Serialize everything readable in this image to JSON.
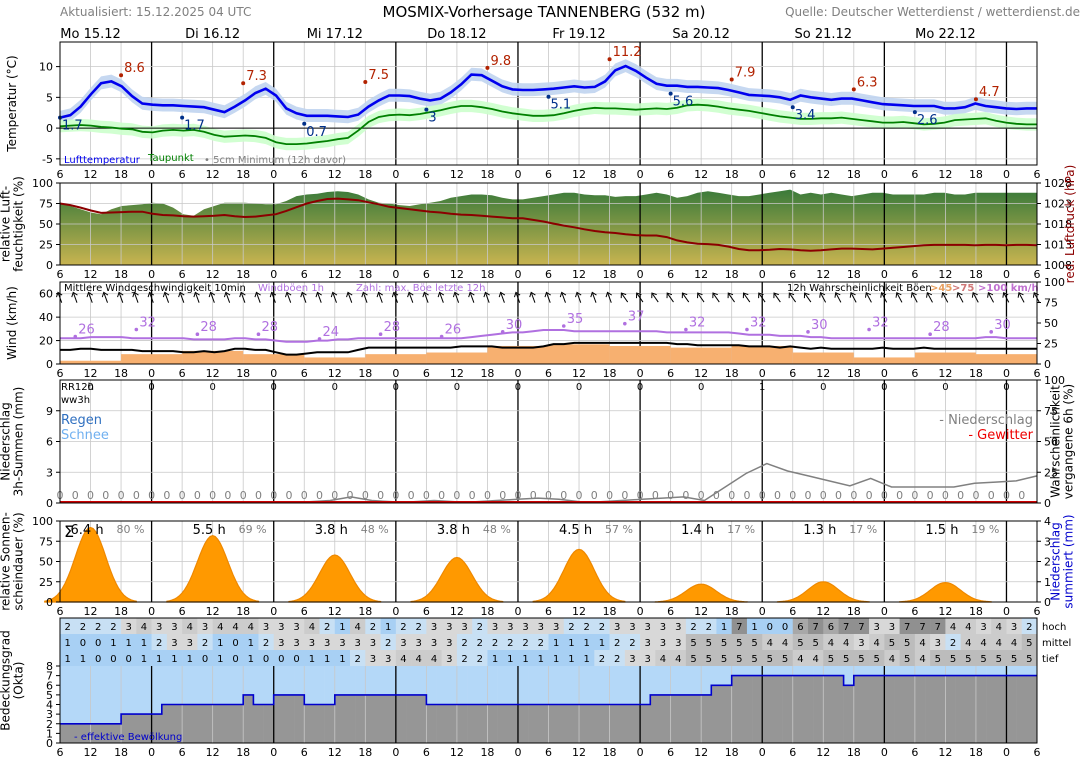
{
  "header": {
    "updated": "Aktualisiert: 15.12.2025 04 UTC",
    "title": "MOSMIX-Vorhersage TANNENBERG (532 m)",
    "source": "Quelle: Deutscher Wetterdienst / wetterdienst.de"
  },
  "days": [
    "Mo 15.12",
    "Di 16.12",
    "Mi 17.12",
    "Do 18.12",
    "Fr 19.12",
    "Sa 20.12",
    "So 21.12",
    "Mo 22.12"
  ],
  "hour_ticks": [
    "6",
    "12",
    "18",
    "0"
  ],
  "colors": {
    "temp": "#0000ee",
    "temp_band": "#c0d4f0",
    "dew": "#008000",
    "dew_band": "#ccffcc",
    "max_label": "#b22200",
    "min_label": "#00308a",
    "humidity_top": "#3a7a3a",
    "humidity_bottom": "#c8b450",
    "pressure": "#8b0000",
    "wind": "#000000",
    "gust": "#b070e0",
    "wind_prob": "#f7b070",
    "sun": "#ff9900",
    "precip_prob": "#808080",
    "cloud_eff": "#0000cc"
  },
  "chart_data": [
    {
      "type": "line",
      "name": "temperature",
      "ylabel": "Temperatur (°C)",
      "ylim": [
        -6,
        14
      ],
      "yticks": [
        -5,
        0,
        5,
        10
      ],
      "legend": [
        "Lufttemperatur",
        "Taupunkt",
        "5cm Minimum (12h davor)"
      ],
      "series": [
        {
          "name": "Lufttemperatur",
          "values": [
            1.7,
            2.1,
            3.5,
            5.5,
            7.3,
            7.6,
            6.8,
            5.2,
            4.0,
            3.8,
            3.7,
            3.7,
            3.6,
            3.5,
            3.4,
            3.0,
            2.6,
            3.5,
            4.5,
            5.7,
            6.4,
            5.3,
            3.2,
            2.4,
            2.0,
            2.0,
            2.0,
            1.9,
            1.8,
            2.2,
            3.5,
            4.5,
            5.3,
            5.3,
            5.2,
            4.8,
            4.5,
            4.8,
            5.8,
            7.1,
            8.7,
            8.6,
            7.7,
            6.8,
            6.3,
            6.2,
            6.2,
            6.3,
            6.4,
            6.6,
            6.8,
            6.6,
            6.7,
            7.6,
            9.4,
            10.1,
            9.3,
            8.2,
            7.2,
            6.9,
            6.9,
            6.7,
            6.7,
            6.6,
            6.5,
            6.2,
            5.8,
            5.4,
            5.3,
            5.2,
            5.0,
            4.6,
            5.3,
            5.0,
            4.8,
            4.6,
            4.8,
            4.8,
            4.5,
            4.2,
            3.9,
            3.8,
            3.7,
            3.6,
            3.6,
            3.6,
            3.2,
            3.2,
            3.4,
            4.0,
            3.6,
            3.4,
            3.2,
            3.1,
            3.2,
            3.2
          ]
        },
        {
          "name": "Taupunkt",
          "values": [
            0.3,
            0.4,
            0.5,
            0.4,
            0.2,
            0.1,
            -0.1,
            -0.2,
            -0.6,
            -0.7,
            -0.4,
            -0.3,
            -0.4,
            -0.3,
            -0.6,
            -1.1,
            -1.4,
            -1.3,
            -1.2,
            -1.3,
            -1.6,
            -2.3,
            -2.6,
            -2.6,
            -2.5,
            -2.3,
            -2.1,
            -1.8,
            -1.6,
            -0.4,
            1.0,
            1.8,
            2.1,
            2.2,
            2.1,
            2.3,
            2.6,
            2.9,
            3.3,
            3.6,
            3.6,
            3.4,
            3.1,
            2.7,
            2.4,
            2.2,
            2.0,
            2.0,
            2.1,
            2.4,
            2.8,
            3.1,
            3.3,
            3.2,
            3.2,
            3.1,
            3.0,
            3.1,
            3.2,
            3.1,
            3.3,
            3.7,
            3.8,
            3.7,
            3.5,
            3.2,
            3.0,
            2.8,
            2.5,
            2.2,
            1.9,
            1.7,
            1.5,
            1.5,
            1.6,
            1.6,
            1.7,
            1.5,
            1.3,
            1.1,
            0.9,
            0.9,
            1.0,
            0.8,
            0.6,
            0.7,
            0.9,
            1.3,
            1.4,
            1.5,
            1.6,
            1.2,
            0.9,
            0.7,
            0.6,
            0.6
          ]
        }
      ],
      "max_labels": [
        8.6,
        7.3,
        7.5,
        9.8,
        11.2,
        7.9,
        6.3,
        4.7
      ],
      "min_labels": [
        1.7,
        1.7,
        0.7,
        3.0,
        5.1,
        5.6,
        3.4,
        2.6
      ]
    },
    {
      "type": "area",
      "name": "humidity_pressure",
      "ylabel": "relative Luft-\nfeuchtigkeit (%)",
      "ylabel2": "red. Luftdruck (hPa)",
      "ylim": [
        0,
        100
      ],
      "yticks": [
        0,
        25,
        50,
        75,
        100
      ],
      "y2lim": [
        1008,
        1028
      ],
      "y2ticks": [
        1008,
        1013,
        1018,
        1023,
        1028
      ],
      "series": [
        {
          "name": "relative Luftfeuchtigkeit",
          "values": [
            75,
            72,
            68,
            64,
            62,
            68,
            72,
            73,
            74,
            76,
            75,
            70,
            62,
            60,
            68,
            72,
            76,
            76,
            76,
            75,
            74,
            74,
            78,
            84,
            86,
            87,
            89,
            90,
            89,
            86,
            80,
            76,
            75,
            73,
            72,
            74,
            76,
            78,
            82,
            84,
            86,
            86,
            85,
            82,
            80,
            80,
            82,
            84,
            86,
            88,
            88,
            86,
            85,
            85,
            83,
            84,
            84,
            86,
            88,
            86,
            82,
            84,
            88,
            90,
            88,
            86,
            84,
            84,
            86,
            88,
            90,
            92,
            86,
            88,
            86,
            88,
            86,
            84,
            86,
            88,
            88,
            86,
            86,
            86,
            86,
            88,
            88,
            86,
            86,
            88,
            88,
            88,
            88,
            88,
            88,
            88
          ]
        },
        {
          "name": "red. Luftdruck",
          "values": [
            1023.0,
            1022.6,
            1022.0,
            1021.3,
            1020.7,
            1020.8,
            1020.9,
            1021.0,
            1021.0,
            1020.5,
            1020.2,
            1020.1,
            1019.9,
            1019.8,
            1019.9,
            1020.0,
            1020.2,
            1019.9,
            1019.7,
            1019.8,
            1020.1,
            1020.4,
            1021.2,
            1022.1,
            1023.0,
            1023.6,
            1024.1,
            1024.2,
            1024.0,
            1023.8,
            1023.3,
            1022.8,
            1022.2,
            1021.9,
            1021.6,
            1021.3,
            1021.0,
            1020.8,
            1020.5,
            1020.3,
            1020.2,
            1020.0,
            1019.8,
            1019.6,
            1019.4,
            1019.4,
            1019.0,
            1018.6,
            1018.1,
            1017.6,
            1017.2,
            1016.7,
            1016.3,
            1016.0,
            1015.8,
            1015.5,
            1015.3,
            1015.2,
            1015.2,
            1014.8,
            1014.0,
            1013.5,
            1013.2,
            1013.1,
            1012.9,
            1012.5,
            1011.9,
            1011.6,
            1011.6,
            1011.7,
            1011.9,
            1011.8,
            1011.6,
            1011.5,
            1011.6,
            1011.8,
            1012.0,
            1012.0,
            1011.9,
            1011.8,
            1012.0,
            1012.2,
            1012.4,
            1012.6,
            1012.8,
            1012.9,
            1012.9,
            1012.9,
            1012.9,
            1012.8,
            1012.9,
            1012.9,
            1012.8,
            1012.9,
            1012.9,
            1012.8
          ]
        }
      ]
    },
    {
      "type": "line",
      "name": "wind",
      "ylabel": "Wind (km/h)",
      "ylim": [
        0,
        70
      ],
      "yticks": [
        0,
        20,
        40,
        60
      ],
      "y2lim": [
        0,
        100
      ],
      "y2ticks": [
        0,
        25,
        50,
        75,
        100
      ],
      "legend": [
        "Mittlere Windgeschwindigkeit 10min",
        "Windböen 1h",
        "Zahl: max. Böe letzte 12h",
        "12h Wahrscheinlichkeit Böen",
        ">45",
        ">75",
        ">100 km/h"
      ],
      "series": [
        {
          "name": "Mittlere Windgeschwindigkeit 10min",
          "values": [
            12,
            12,
            13,
            13,
            12,
            12,
            12,
            12,
            11,
            11,
            11,
            11,
            10,
            10,
            11,
            10,
            11,
            13,
            13,
            12,
            12,
            10,
            8,
            8,
            9,
            10,
            10,
            10,
            10,
            12,
            14,
            14,
            14,
            14,
            14,
            14,
            14,
            14,
            14,
            15,
            15,
            15,
            15,
            14,
            14,
            14,
            14,
            15,
            17,
            17,
            18,
            18,
            18,
            18,
            18,
            18,
            18,
            18,
            18,
            18,
            17,
            17,
            16,
            16,
            16,
            16,
            16,
            15,
            15,
            15,
            14,
            15,
            14,
            13,
            14,
            13,
            13,
            13,
            13,
            13,
            14,
            13,
            13,
            13,
            14,
            13,
            13,
            13,
            13,
            13,
            13,
            13,
            13,
            13,
            13,
            13
          ]
        },
        {
          "name": "Windböen 1h",
          "values": [
            22,
            22,
            22,
            23,
            23,
            23,
            23,
            22,
            22,
            22,
            22,
            22,
            22,
            21,
            21,
            21,
            21,
            22,
            22,
            21,
            21,
            20,
            19,
            19,
            19,
            20,
            20,
            21,
            21,
            22,
            22,
            22,
            22,
            22,
            22,
            22,
            22,
            22,
            22,
            22,
            23,
            24,
            25,
            26,
            27,
            27,
            28,
            29,
            29,
            29,
            28,
            28,
            28,
            28,
            28,
            28,
            28,
            28,
            28,
            27,
            27,
            27,
            27,
            27,
            27,
            27,
            26,
            25,
            25,
            25,
            24,
            24,
            24,
            23,
            23,
            22,
            22,
            22,
            22,
            22,
            22,
            22,
            22,
            22,
            22,
            22,
            22,
            22,
            22,
            22,
            23,
            23,
            22,
            22,
            22,
            22
          ]
        }
      ],
      "max_gust_labels": [
        26,
        32,
        28,
        28,
        24,
        28,
        26,
        30,
        35,
        37,
        32,
        32,
        30,
        32,
        28,
        30
      ],
      "gust_prob_45": [
        4,
        12,
        16,
        12,
        8,
        12,
        14,
        22,
        24,
        22,
        20,
        22,
        14,
        8,
        14,
        12
      ]
    },
    {
      "type": "line",
      "name": "precipitation",
      "ylabel": "Niederschlag\n3h-Summen (mm)",
      "ylabel2": "Wahrscheinlichkeit\nvergangene 6h (%)",
      "ylim": [
        0,
        12
      ],
      "yticks": [
        0,
        3,
        6,
        9
      ],
      "y2lim": [
        0,
        100
      ],
      "y2ticks": [
        0,
        25,
        50,
        75,
        100
      ],
      "labels": [
        "RR12h",
        "ww3h",
        "Regen",
        "Schnee",
        "- Niederschlag",
        "- Gewitter"
      ],
      "rr12h": [
        0,
        0,
        0,
        0,
        0,
        0,
        0,
        0,
        0,
        0,
        0,
        1,
        0,
        0,
        0,
        0
      ],
      "amounts_3h": [
        0,
        0,
        0,
        0,
        0,
        0,
        0,
        0,
        0,
        0,
        0,
        0,
        0,
        0,
        0,
        0,
        0,
        0,
        0,
        0,
        0,
        0,
        0,
        0,
        0,
        0,
        0,
        0,
        0,
        0,
        0,
        0,
        0,
        0,
        0,
        0,
        0,
        0,
        0,
        0,
        0,
        0,
        0,
        0,
        0,
        0,
        0,
        0,
        0,
        0,
        0,
        0,
        0,
        0,
        0,
        0,
        0,
        0,
        0,
        0,
        0,
        0,
        0,
        0
      ],
      "probability_6h": [
        1,
        1,
        1,
        1,
        1,
        1,
        1,
        1,
        1,
        1,
        1,
        1,
        1,
        2,
        5,
        2,
        1,
        1,
        2,
        1,
        1,
        2,
        3,
        4,
        3,
        1,
        1,
        2,
        3,
        4,
        5,
        2,
        13,
        24,
        32,
        26,
        22,
        18,
        14,
        20,
        13,
        13,
        13,
        13,
        16,
        17,
        18,
        22
      ]
    },
    {
      "type": "area",
      "name": "sunshine",
      "ylabel": "relative Sonnen-\nscheindauer (%)",
      "ylabel2": "Niederschlag\nsummiert (mm)",
      "ylim": [
        0,
        100
      ],
      "yticks": [
        0,
        25,
        50,
        75,
        100
      ],
      "y2lim": [
        0,
        4
      ],
      "y2ticks": [
        0,
        1,
        2,
        3,
        4
      ],
      "sigma": "Σ",
      "daily_hours": [
        "6.4 h",
        "5.5 h",
        "3.8 h",
        "3.8 h",
        "4.5 h",
        "1.4 h",
        "1.3 h",
        "1.5 h"
      ],
      "daily_percent": [
        "80 %",
        "69 %",
        "48 %",
        "48 %",
        "57 %",
        "17 %",
        "17 %",
        "19 %"
      ],
      "peaks": [
        92,
        82,
        58,
        55,
        65,
        22,
        25,
        24
      ]
    },
    {
      "type": "heatmap",
      "name": "cloud_cover",
      "ylabel": "Bedeckungsgrad\n(Okta)",
      "ylim": [
        0,
        8
      ],
      "yticks": [
        0,
        1,
        2,
        3,
        4,
        5,
        6,
        7,
        8
      ],
      "row_labels": [
        "hoch",
        "mittel",
        "tief"
      ],
      "hoch": [
        2,
        2,
        2,
        2,
        3,
        4,
        3,
        3,
        4,
        3,
        4,
        4,
        4,
        3,
        3,
        3,
        4,
        2,
        1,
        4,
        2,
        1,
        2,
        2,
        3,
        3,
        3,
        2,
        3,
        3,
        3,
        3,
        3,
        2,
        2,
        2,
        3,
        3,
        3,
        3,
        3,
        2,
        2,
        1,
        7,
        1,
        0,
        0,
        6,
        7,
        6,
        7,
        7,
        3,
        3,
        7,
        7,
        7,
        4,
        4,
        3,
        4,
        3,
        2
      ],
      "mittel": [
        1,
        0,
        0,
        1,
        1,
        1,
        2,
        3,
        3,
        2,
        1,
        0,
        1,
        2,
        3,
        3,
        3,
        3,
        3,
        3,
        3,
        2,
        3,
        3,
        3,
        3,
        2,
        2,
        2,
        2,
        2,
        2,
        1,
        1,
        1,
        1,
        2,
        2,
        3,
        3,
        3,
        5,
        5,
        5,
        5,
        5,
        4,
        4,
        5,
        5,
        4,
        4,
        3,
        4,
        5,
        5,
        4,
        3,
        2,
        4,
        4,
        4,
        4,
        5
      ],
      "tief": [
        1,
        1,
        0,
        0,
        0,
        1,
        1,
        1,
        1,
        0,
        1,
        0,
        1,
        0,
        0,
        0,
        1,
        1,
        1,
        2,
        3,
        3,
        4,
        4,
        4,
        3,
        2,
        2,
        1,
        1,
        1,
        1,
        1,
        1,
        1,
        2,
        2,
        3,
        3,
        4,
        4,
        5,
        5,
        5,
        5,
        5,
        5,
        5,
        4,
        4,
        5,
        5,
        5,
        5,
        4,
        5,
        4,
        5,
        5,
        5,
        5,
        5,
        5,
        5
      ],
      "effective": [
        2,
        2,
        2,
        2,
        2,
        2,
        3,
        3,
        3,
        3,
        4,
        4,
        4,
        4,
        4,
        4,
        4,
        4,
        5,
        4,
        4,
        5,
        5,
        5,
        4,
        4,
        4,
        5,
        5,
        5,
        5,
        5,
        5,
        5,
        5,
        5,
        4,
        4,
        4,
        4,
        4,
        4,
        4,
        4,
        4,
        4,
        4,
        4,
        4,
        4,
        4,
        4,
        4,
        4,
        4,
        4,
        4,
        4,
        5,
        5,
        5,
        5,
        5,
        5,
        6,
        6,
        7,
        7,
        7,
        7,
        7,
        7,
        7,
        7,
        7,
        7,
        7,
        6,
        7,
        7,
        7,
        7,
        7,
        7,
        7,
        7,
        7,
        7,
        7,
        7,
        7,
        7,
        7,
        7,
        7,
        7
      ],
      "legend": "- effektive Bewölkung"
    }
  ]
}
